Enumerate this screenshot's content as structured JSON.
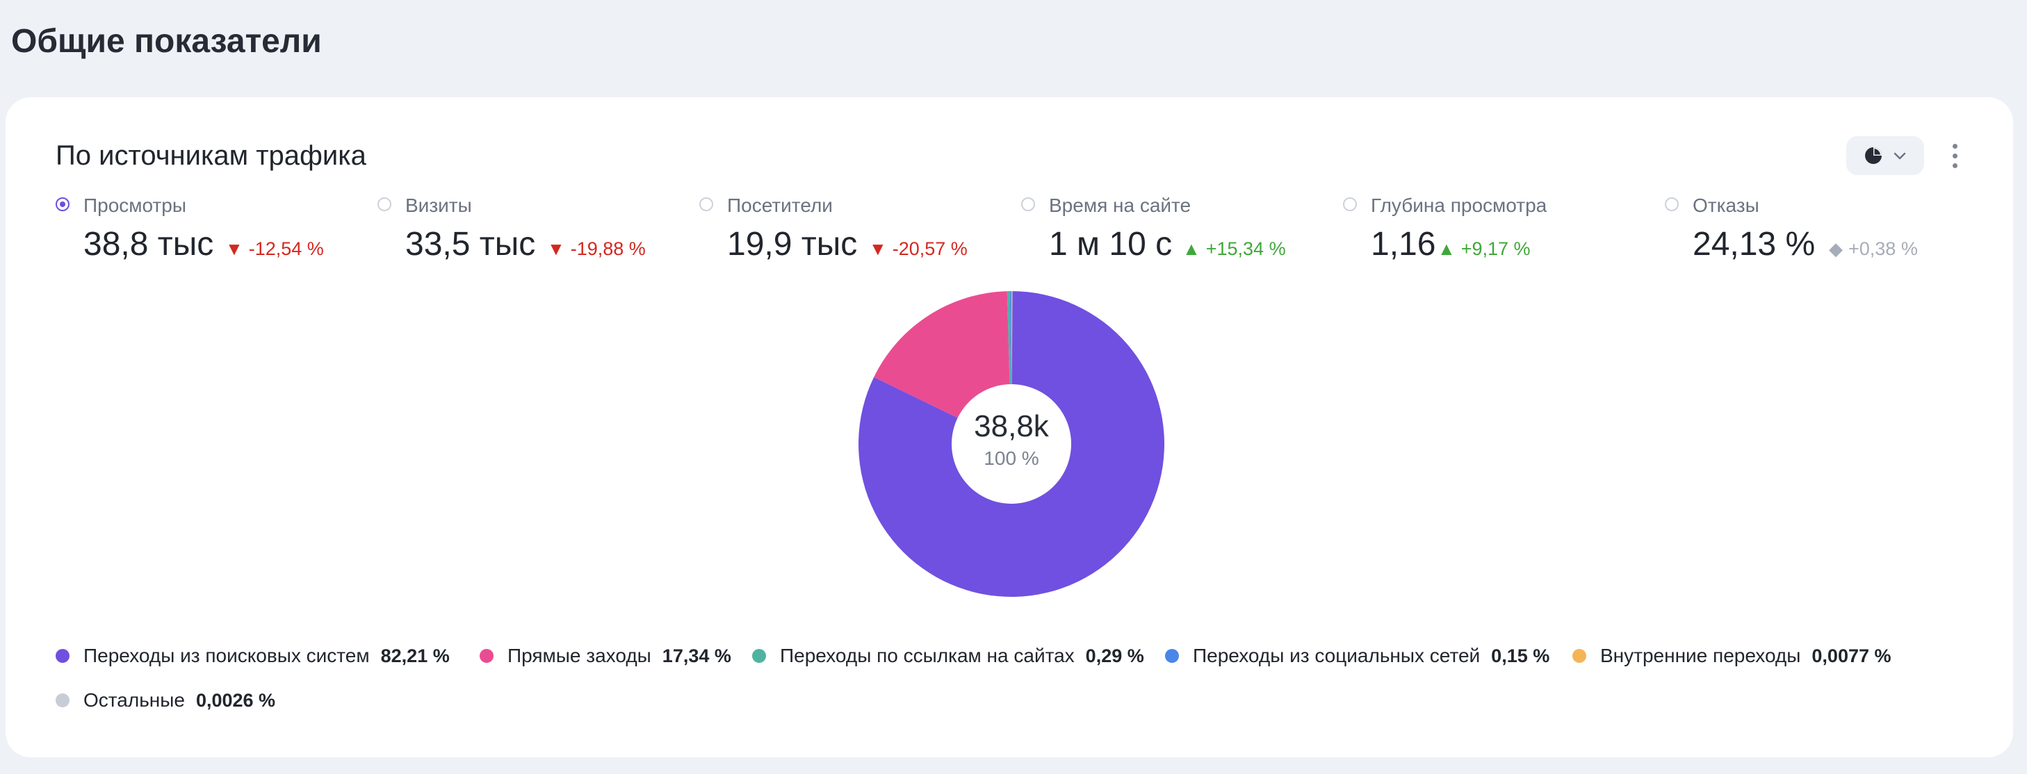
{
  "page": {
    "title": "Общие показатели"
  },
  "card": {
    "title": "По источникам трафика",
    "chart_switch_icon": "pie-chart-icon",
    "more_icon": "more-vertical-icon"
  },
  "metrics": [
    {
      "label": "Просмотры",
      "value": "38,8 тыс",
      "delta": "-12,54 %",
      "trend": "down",
      "selected": true
    },
    {
      "label": "Визиты",
      "value": "33,5 тыс",
      "delta": "-19,88 %",
      "trend": "down",
      "selected": false
    },
    {
      "label": "Посетители",
      "value": "19,9 тыс",
      "delta": "-20,57 %",
      "trend": "down",
      "selected": false
    },
    {
      "label": "Время на сайте",
      "value": "1 м 10 с",
      "delta": "+15,34 %",
      "trend": "up",
      "selected": false
    },
    {
      "label": "Глубина просмотра",
      "value": "1,16",
      "delta": "+9,17 %",
      "trend": "up",
      "selected": false
    },
    {
      "label": "Отказы",
      "value": "24,13 %",
      "delta": "+0,38 %",
      "trend": "neutral",
      "selected": false
    }
  ],
  "donut": {
    "center_value": "38,8k",
    "center_pct": "100 %"
  },
  "legend": [
    {
      "name": "Переходы из поисковых систем",
      "pct": "82,21 %",
      "color": "#7050e0"
    },
    {
      "name": "Прямые заходы",
      "pct": "17,34 %",
      "color": "#ea4c91"
    },
    {
      "name": "Переходы по ссылкам на сайтах",
      "pct": "0,29 %",
      "color": "#4fb3a0"
    },
    {
      "name": "Переходы из социальных сетей",
      "pct": "0,15 %",
      "color": "#4a86e8"
    },
    {
      "name": "Внутренние переходы",
      "pct": "0,0077 %",
      "color": "#f5b556"
    },
    {
      "name": "Остальные",
      "pct": "0,0026 %",
      "color": "#c7ccd6"
    }
  ],
  "chart_data": {
    "type": "pie",
    "categories": [
      "Переходы из поисковых систем",
      "Прямые заходы",
      "Переходы по ссылкам на сайтах",
      "Переходы из социальных сетей",
      "Внутренние переходы",
      "Остальные"
    ],
    "values": [
      82.21,
      17.34,
      0.29,
      0.15,
      0.0077,
      0.0026
    ],
    "colors": [
      "#7050e0",
      "#ea4c91",
      "#4fb3a0",
      "#4a86e8",
      "#f5b556",
      "#c7ccd6"
    ],
    "total_label": "38,8k",
    "total_pct": "100 %",
    "legend": "bottom-left"
  }
}
